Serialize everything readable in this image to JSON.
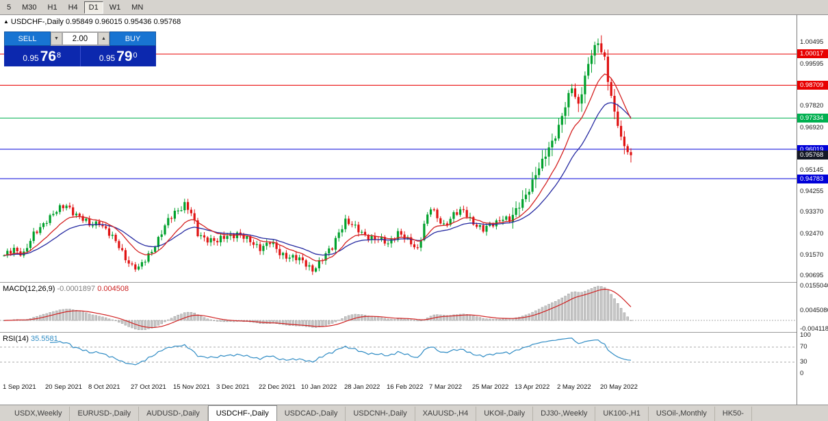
{
  "colors": {
    "up_candle": "#00a12c",
    "down_candle": "#e01212",
    "ma_fast": "#d42020",
    "ma_slow": "#2428a0",
    "macd_bar": "#c6c6c6",
    "macd_bar_edge": "#9c9c9c",
    "macd_signal": "#d02020",
    "rsi_line": "#2e8bc4",
    "level_red": "#e80000",
    "level_green": "#00b050",
    "level_blue": "#0000d8",
    "current_badge": "#141826"
  },
  "toolbar": {
    "items": [
      "5",
      "M30",
      "H1",
      "H4",
      "D1",
      "W1",
      "MN"
    ],
    "active": "D1"
  },
  "icons": {
    "collapse": "▲",
    "spin_down": "▼",
    "spin_up": "▲"
  },
  "chart": {
    "title": "USDCHF-,Daily",
    "ohlc_text": "0.95849 0.96015 0.95436 0.95768",
    "trade_panel": {
      "sell_label": "SELL",
      "buy_label": "BUY",
      "volume": "2.00",
      "sell_price": {
        "base": "0.95",
        "big": "76",
        "sup": "8"
      },
      "buy_price": {
        "base": "0.95",
        "big": "79",
        "sup": "0"
      }
    }
  },
  "macd": {
    "title": "MACD(12,26,9)",
    "value1": "-0.0001897",
    "value2": "0.004508",
    "axis": [
      {
        "t": "0.0155040",
        "v": 0.015504
      },
      {
        "t": "0.0045080",
        "v": 0.004508
      },
      {
        "t": "-0.0041180",
        "v": -0.004118
      }
    ]
  },
  "rsi": {
    "title": "RSI(14)",
    "value": "35.5581",
    "axis": [
      {
        "t": "100",
        "v": 100
      },
      {
        "t": "70",
        "v": 70
      },
      {
        "t": "30",
        "v": 30
      },
      {
        "t": "0",
        "v": 0
      }
    ]
  },
  "dates": [
    "1 Sep 2021",
    "20 Sep 2021",
    "8 Oct 2021",
    "27 Oct 2021",
    "15 Nov 2021",
    "3 Dec 2021",
    "22 Dec 2021",
    "10 Jan 2022",
    "28 Jan 2022",
    "16 Feb 2022",
    "7 Mar 2022",
    "25 Mar 2022",
    "13 Apr 2022",
    "2 May 2022",
    "20 May 2022"
  ],
  "tabs": [
    "USDX,Weekly",
    "EURUSD-,Daily",
    "AUDUSD-,Daily",
    "USDCHF-,Daily",
    "USDCAD-,Daily",
    "USDCNH-,Daily",
    "XAUUSD-,H4",
    "UKOil-,Daily",
    "DJ30-,Weekly",
    "UK100-,H1",
    "USOil-,Monthly",
    "HK50-"
  ],
  "active_tab": "USDCHF-,Daily",
  "chart_data": {
    "type": "candlestick",
    "symbol": "USDCHF-",
    "timeframe": "Daily",
    "ohlc_last": {
      "open": 0.95849,
      "high": 0.96015,
      "low": 0.95436,
      "close": 0.95768
    },
    "n": 192,
    "label_step": 13,
    "plot_right": 922,
    "price_range": [
      0.9045,
      1.0165
    ],
    "close_anchors": [
      [
        0,
        0.915
      ],
      [
        3,
        0.9185
      ],
      [
        6,
        0.9165
      ],
      [
        9,
        0.924
      ],
      [
        13,
        0.931
      ],
      [
        16,
        0.934
      ],
      [
        19,
        0.9368
      ],
      [
        22,
        0.933
      ],
      [
        26,
        0.9282
      ],
      [
        29,
        0.93
      ],
      [
        32,
        0.9245
      ],
      [
        35,
        0.9195
      ],
      [
        37,
        0.915
      ],
      [
        39,
        0.911
      ],
      [
        41,
        0.9098
      ],
      [
        44,
        0.916
      ],
      [
        47,
        0.9225
      ],
      [
        50,
        0.93
      ],
      [
        52,
        0.934
      ],
      [
        55,
        0.9372
      ],
      [
        57,
        0.933
      ],
      [
        59,
        0.9245
      ],
      [
        62,
        0.9228
      ],
      [
        65,
        0.9212
      ],
      [
        68,
        0.924
      ],
      [
        71,
        0.925
      ],
      [
        74,
        0.922
      ],
      [
        78,
        0.9192
      ],
      [
        81,
        0.921
      ],
      [
        84,
        0.9165
      ],
      [
        88,
        0.915
      ],
      [
        91,
        0.9128
      ],
      [
        94,
        0.91
      ],
      [
        97,
        0.914
      ],
      [
        100,
        0.919
      ],
      [
        102,
        0.926
      ],
      [
        104,
        0.9302
      ],
      [
        107,
        0.927
      ],
      [
        110,
        0.9245
      ],
      [
        113,
        0.9225
      ],
      [
        117,
        0.9208
      ],
      [
        120,
        0.9255
      ],
      [
        123,
        0.9215
      ],
      [
        126,
        0.9185
      ],
      [
        128,
        0.929
      ],
      [
        130,
        0.9355
      ],
      [
        132,
        0.931
      ],
      [
        134,
        0.9285
      ],
      [
        137,
        0.933
      ],
      [
        140,
        0.934
      ],
      [
        143,
        0.9298
      ],
      [
        146,
        0.9262
      ],
      [
        149,
        0.9288
      ],
      [
        152,
        0.932
      ],
      [
        154,
        0.9302
      ],
      [
        156,
        0.934
      ],
      [
        158,
        0.939
      ],
      [
        160,
        0.944
      ],
      [
        162,
        0.9495
      ],
      [
        164,
        0.9545
      ],
      [
        166,
        0.961
      ],
      [
        168,
        0.9665
      ],
      [
        169,
        0.97
      ],
      [
        171,
        0.978
      ],
      [
        173,
        0.986
      ],
      [
        175,
        0.979
      ],
      [
        177,
        0.991
      ],
      [
        179,
        1.0
      ],
      [
        181,
        1.0045
      ],
      [
        183,
        0.9985
      ],
      [
        184,
        0.99
      ],
      [
        185,
        0.983
      ],
      [
        186,
        0.976
      ],
      [
        187,
        0.97
      ],
      [
        188,
        0.9655
      ],
      [
        189,
        0.9615
      ],
      [
        190,
        0.959
      ],
      [
        191,
        0.9577
      ]
    ],
    "levels": [
      {
        "t": "1.00017",
        "v": 1.00017,
        "color": "#e80000"
      },
      {
        "t": "0.98709",
        "v": 0.98709,
        "color": "#e80000"
      },
      {
        "t": "0.97334",
        "v": 0.97334,
        "color": "#00b050"
      },
      {
        "t": "0.96019",
        "v": 0.96019,
        "color": "#0000d8"
      },
      {
        "t": "0.94783",
        "v": 0.94783,
        "color": "#0000d8"
      }
    ],
    "current_price": {
      "t": "0.95768",
      "v": 0.95768
    },
    "price_axis_labels": [
      {
        "t": "1.00495",
        "v": 1.00495
      },
      {
        "t": "0.99595",
        "v": 0.99595
      },
      {
        "t": "0.97820",
        "v": 0.9782
      },
      {
        "t": "0.96920",
        "v": 0.9692
      },
      {
        "t": "0.95145",
        "v": 0.95145
      },
      {
        "t": "0.94255",
        "v": 0.94255
      },
      {
        "t": "0.93370",
        "v": 0.9337
      },
      {
        "t": "0.92470",
        "v": 0.9247
      },
      {
        "t": "0.91570",
        "v": 0.9157
      },
      {
        "t": "0.90695",
        "v": 0.90695
      }
    ],
    "indicators": {
      "ma_fast": {
        "type": "ema",
        "period": 12
      },
      "ma_slow": {
        "type": "ema",
        "period": 24
      },
      "macd": {
        "fast": 12,
        "slow": 26,
        "signal": 9,
        "range": [
          -0.0052,
          0.017
        ]
      },
      "rsi": {
        "period": 14,
        "levels": [
          70,
          30
        ],
        "range": [
          0,
          100
        ]
      }
    }
  }
}
